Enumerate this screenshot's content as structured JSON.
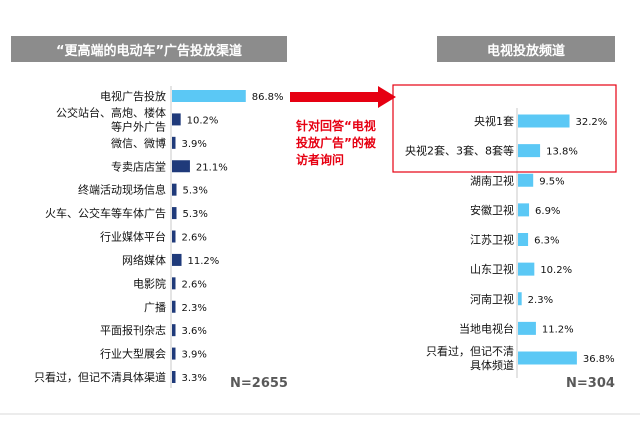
{
  "colors": {
    "header_bg": "#8c8c8c",
    "dark_bar": "#1f3a7a",
    "light_bar": "#5bc8f5",
    "highlight": "#e60012",
    "text": "#111111"
  },
  "chart_data": [
    {
      "type": "bar",
      "orientation": "horizontal",
      "title": "“更高端的电动车”广告投放渠道",
      "categories": [
        "电视广告投放",
        "公交站台、高炮、楼体等户外广告",
        "微信、微博",
        "专卖店店堂",
        "终端活动现场信息",
        "火车、公交车等车体广告",
        "行业媒体平台",
        "网络媒体",
        "电影院",
        "广播",
        "平面报刊杂志",
        "行业大型展会",
        "只看过，但记不清具体渠道"
      ],
      "values": [
        86.8,
        10.2,
        3.9,
        21.1,
        5.3,
        5.3,
        2.6,
        11.2,
        2.6,
        2.3,
        3.6,
        3.9,
        3.3
      ],
      "value_labels": [
        "86.8%",
        "10.2%",
        "3.9%",
        "21.1%",
        "5.3%",
        "5.3%",
        "2.6%",
        "11.2%",
        "2.6%",
        "2.3%",
        "3.6%",
        "3.9%",
        "3.3%"
      ],
      "highlight_index": 0,
      "n_label": "N=2655",
      "xlim": [
        0,
        100
      ]
    },
    {
      "type": "bar",
      "orientation": "horizontal",
      "title": "电视投放频道",
      "categories": [
        "央视1套",
        "央视2套、3套、8套等",
        "湖南卫视",
        "安徽卫视",
        "江苏卫视",
        "山东卫视",
        "河南卫视",
        "当地电视台",
        "只看过，但记不清具体频道"
      ],
      "values": [
        32.2,
        13.8,
        9.5,
        6.9,
        6.3,
        10.2,
        2.3,
        11.2,
        36.8
      ],
      "value_labels": [
        "32.2%",
        "13.8%",
        "9.5%",
        "6.9%",
        "6.3%",
        "10.2%",
        "2.3%",
        "11.2%",
        "36.8%"
      ],
      "n_label": "N=304",
      "xlim": [
        0,
        100
      ]
    }
  ],
  "annotation": {
    "text": "针对回答“电视投放广告”的被访者询问",
    "lines": [
      "针对回答“电视",
      "投放广告”的被",
      "访者询问"
    ]
  }
}
